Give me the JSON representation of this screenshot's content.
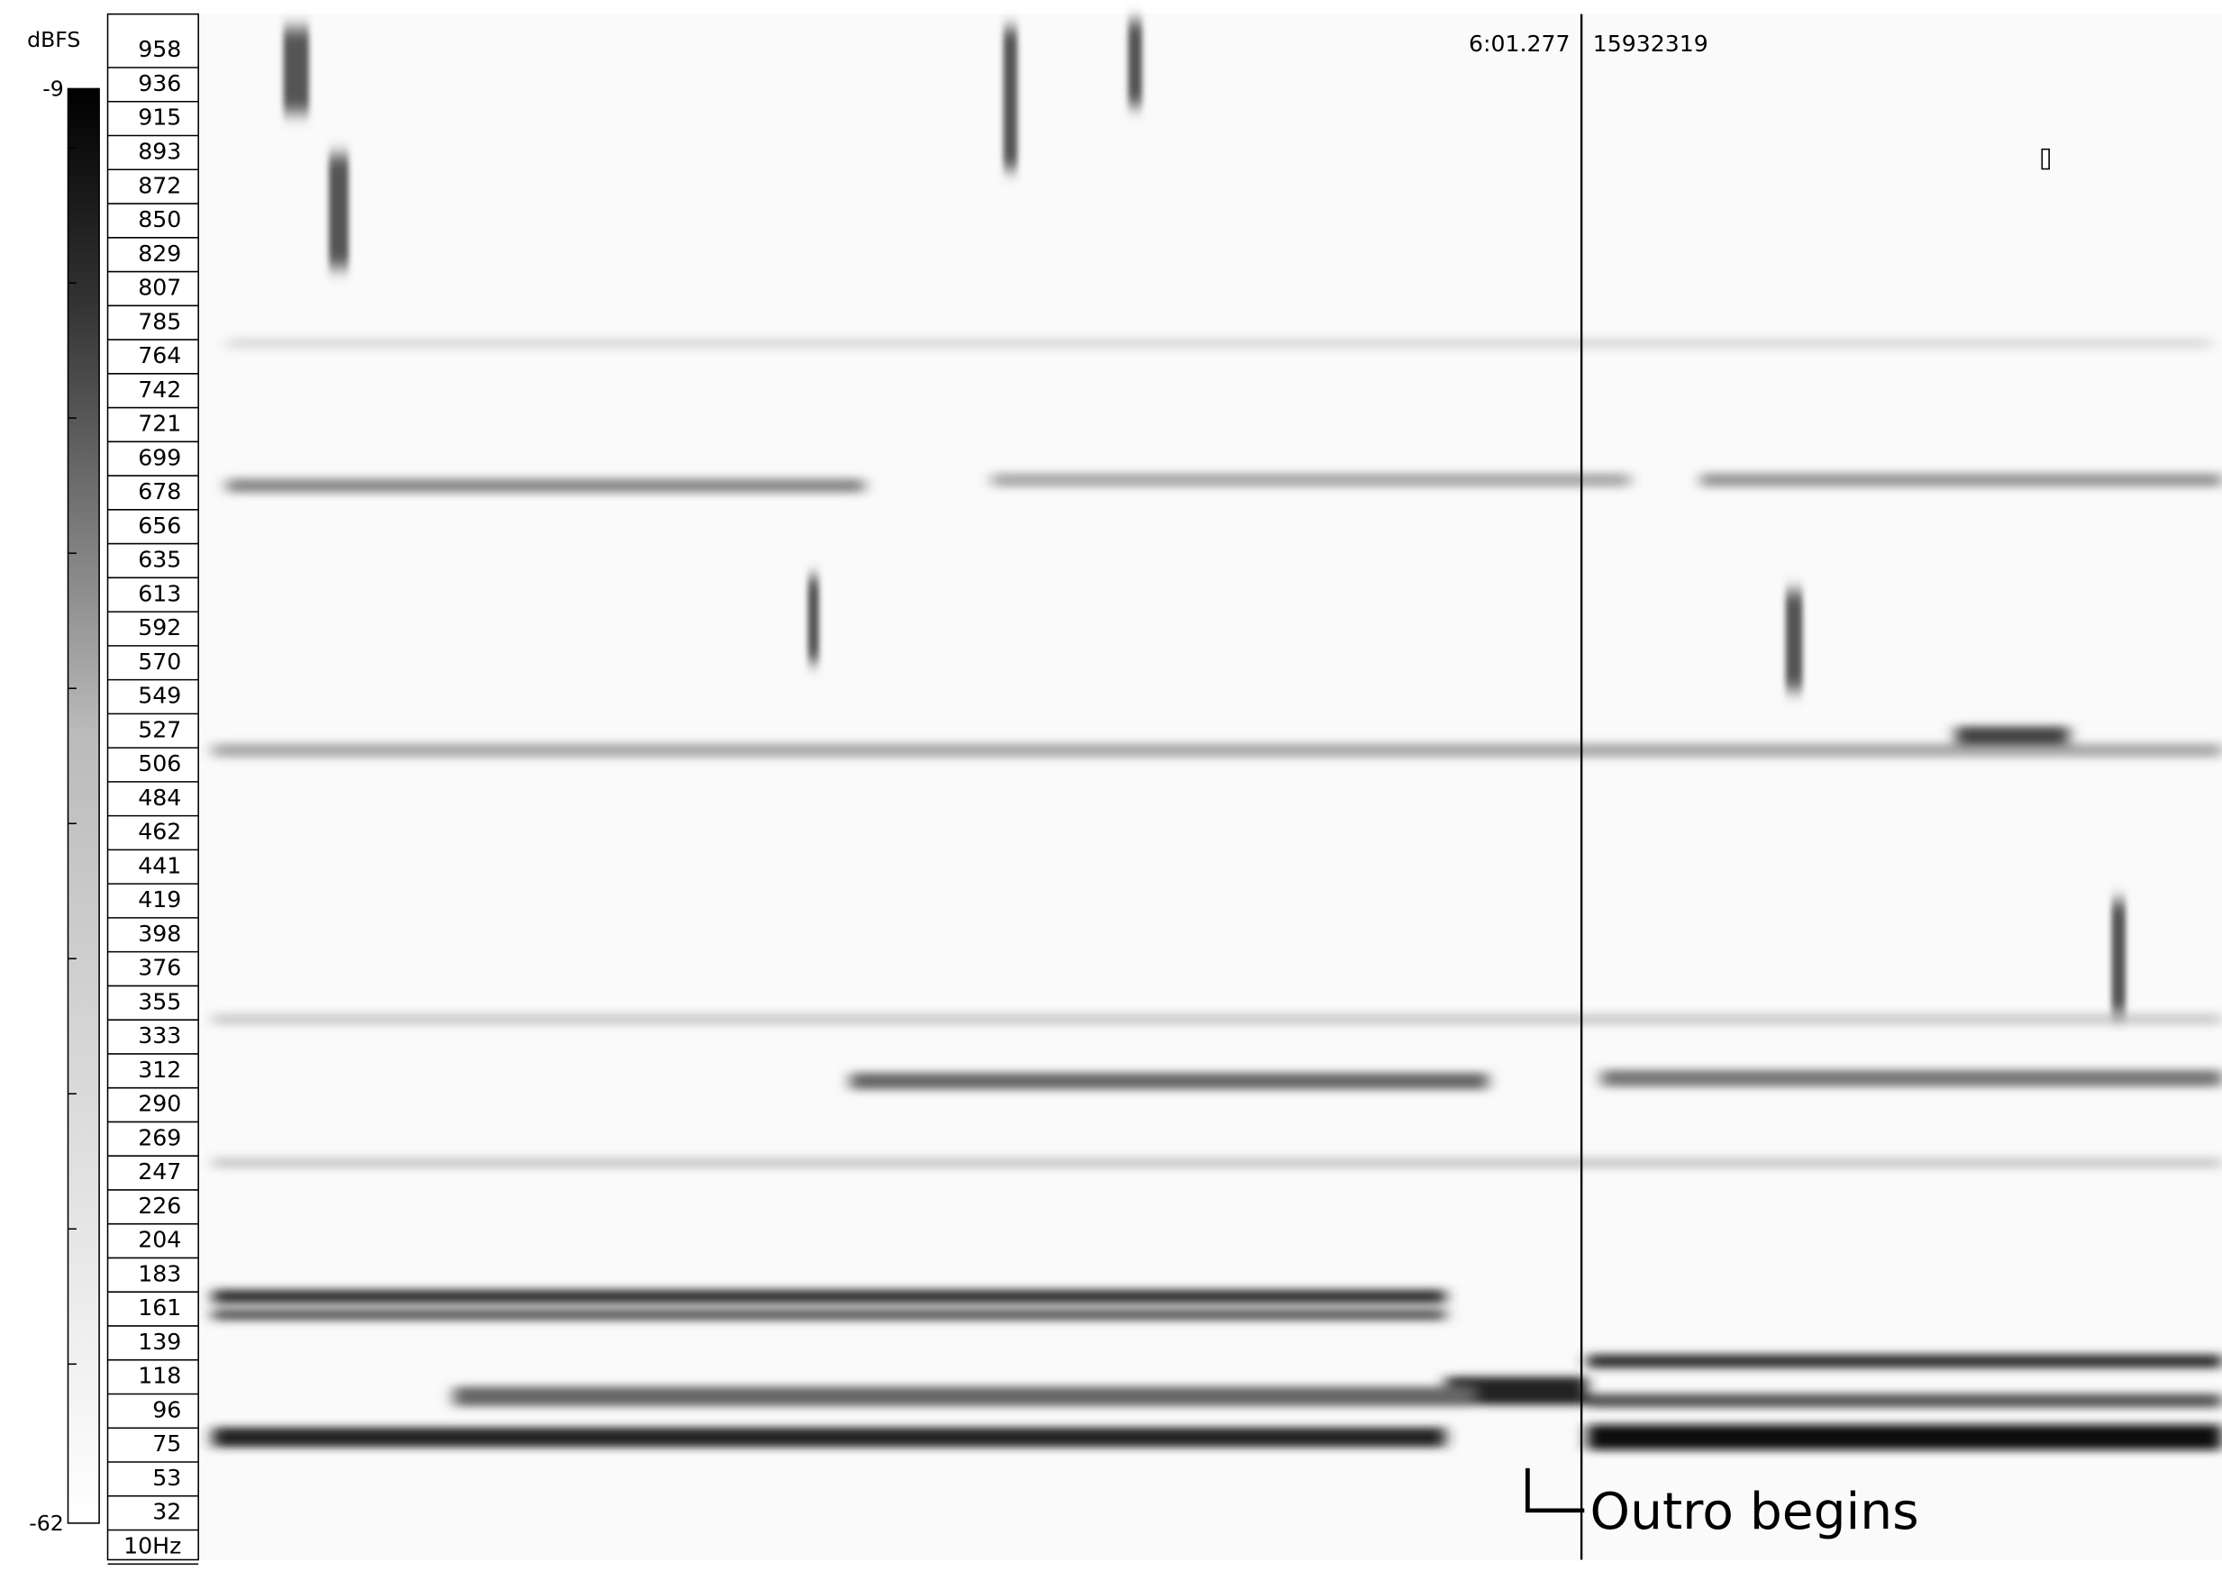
{
  "color_scale": {
    "unit": "dBFS",
    "max": "-9",
    "min": "-62"
  },
  "frequency_scale": {
    "labels": [
      "958",
      "936",
      "915",
      "893",
      "872",
      "850",
      "829",
      "807",
      "785",
      "764",
      "742",
      "721",
      "699",
      "678",
      "656",
      "635",
      "613",
      "592",
      "570",
      "549",
      "527",
      "506",
      "484",
      "462",
      "441",
      "419",
      "398",
      "376",
      "355",
      "333",
      "312",
      "290",
      "269",
      "247",
      "226",
      "204",
      "183",
      "161",
      "139",
      "118",
      "96",
      "75",
      "53",
      "32",
      "10Hz"
    ]
  },
  "cursor": {
    "time": "6:01.277",
    "frame": "15932319"
  },
  "annotation": "Outro begins"
}
